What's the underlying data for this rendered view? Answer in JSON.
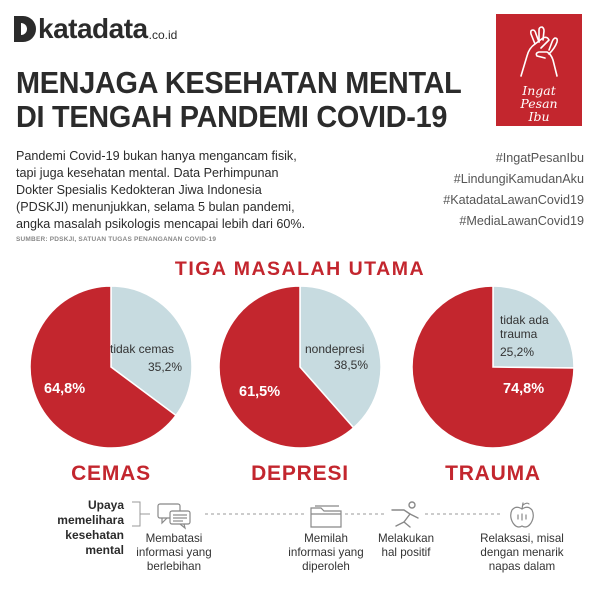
{
  "brand": {
    "name": "katadata",
    "suffix": ".co.id"
  },
  "badge": {
    "line1": "Ingat",
    "line2": "Pesan",
    "line3": "Ibu",
    "color": "#c3262e",
    "icon": "hands-icon"
  },
  "title": {
    "line1": "MENJAGA KESEHATAN MENTAL",
    "line2": "DI TENGAH PANDEMI COVID-19"
  },
  "intro": {
    "line1": "Pandemi Covid-19 bukan hanya mengancam fisik,",
    "line2": "tapi juga kesehatan mental. Data Perhimpunan",
    "line3": "Dokter Spesialis Kedokteran Jiwa Indonesia",
    "line4": "(PDSKJI) menunjukkan, selama 5 bulan pandemi,",
    "line5": "angka masalah psikologis mencapai lebih dari 60%."
  },
  "source": "SUMBER: PDSKJI, SATUAN TUGAS PENANGANAN COVID-19",
  "hashtags": [
    "#IngatPesanIbu",
    "#LindungiKamudanAku",
    "#KatadataLawanCovid19",
    "#MediaLawanCovid19"
  ],
  "chart_data": [
    {
      "type": "pie",
      "title": "CEMAS",
      "section_title": "TIGA MASALAH UTAMA",
      "slices": [
        {
          "label": "cemas",
          "value": 64.8,
          "display": "64,8%",
          "color": "#c3262e"
        },
        {
          "label": "tidak cemas",
          "value": 35.2,
          "display": "35,2%",
          "color": "#c7dbe0"
        }
      ]
    },
    {
      "type": "pie",
      "title": "DEPRESI",
      "slices": [
        {
          "label": "depresi",
          "value": 61.5,
          "display": "61,5%",
          "color": "#c3262e"
        },
        {
          "label": "nondepresi",
          "value": 38.5,
          "display": "38,5%",
          "color": "#c7dbe0"
        }
      ]
    },
    {
      "type": "pie",
      "title": "TRAUMA",
      "slices": [
        {
          "label": "trauma",
          "value": 74.8,
          "display": "74,8%",
          "color": "#c3262e"
        },
        {
          "label": "tidak ada trauma",
          "label_line1": "tidak ada",
          "label_line2": "trauma",
          "value": 25.2,
          "display": "25,2%",
          "color": "#c7dbe0"
        }
      ]
    }
  ],
  "upaya": {
    "title_line1": "Upaya",
    "title_line2": "memelihara",
    "title_line3": "kesehatan",
    "title_line4": "mental",
    "items": [
      {
        "icon": "chat-bubbles-icon",
        "line1": "Membatasi",
        "line2": "informasi yang",
        "line3": "berlebihan"
      },
      {
        "icon": "folder-icon",
        "line1": "Memilah",
        "line2": "informasi yang",
        "line3": "diperoleh"
      },
      {
        "icon": "running-person-icon",
        "line1": "Melakukan",
        "line2": "hal positif",
        "line3": ""
      },
      {
        "icon": "apple-icon",
        "line1": "Relaksasi, misal",
        "line2": "dengan menarik",
        "line3": "napas dalam"
      }
    ]
  }
}
